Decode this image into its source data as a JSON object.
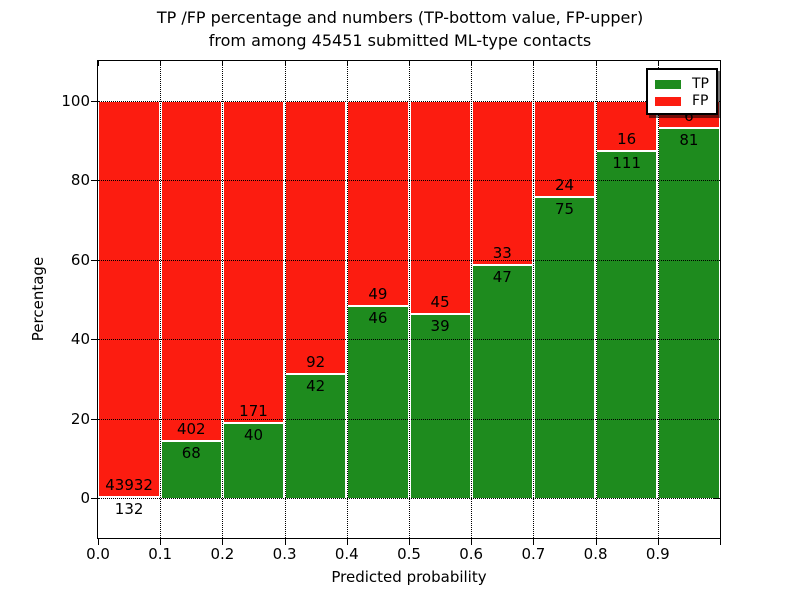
{
  "title": {
    "line1": "TP /FP percentage and numbers (TP-bottom value, FP-upper)",
    "line2": "from among 45451 submitted ML-type contacts"
  },
  "axes": {
    "xlabel": "Predicted probability",
    "ylabel": "Percentage",
    "xtick_labels": [
      "0.0",
      "0.1",
      "0.2",
      "0.3",
      "0.4",
      "0.5",
      "0.6",
      "0.7",
      "0.8",
      "0.9"
    ],
    "ytick_labels": [
      "0",
      "20",
      "40",
      "60",
      "80",
      "100"
    ],
    "ytick_values": [
      0,
      20,
      40,
      60,
      80,
      100
    ]
  },
  "legend": [
    {
      "label": "TP",
      "color": "#1e8b1e"
    },
    {
      "label": "FP",
      "color": "#fc1c10"
    }
  ],
  "colors": {
    "tp": "#1e8b1e",
    "fp": "#fc1c10",
    "grid": "#000000",
    "background": "#ffffff"
  },
  "chart_data": {
    "type": "bar",
    "stacked": true,
    "normalized": "percent",
    "title": "TP /FP percentage and numbers (TP-bottom value, FP-upper) from among 45451 submitted ML-type contacts",
    "total_contacts": 45451,
    "xlabel": "Predicted probability",
    "ylabel": "Percentage",
    "xlim": [
      0.0,
      1.0
    ],
    "ylim": [
      -10,
      110
    ],
    "grid": true,
    "legend_position": "upper right",
    "categories": [
      "0.0-0.1",
      "0.1-0.2",
      "0.2-0.3",
      "0.3-0.4",
      "0.4-0.5",
      "0.5-0.6",
      "0.6-0.7",
      "0.7-0.8",
      "0.8-0.9",
      "0.9-1.0"
    ],
    "series": [
      {
        "name": "TP",
        "values": [
          132,
          68,
          40,
          42,
          46,
          39,
          47,
          75,
          111,
          81
        ]
      },
      {
        "name": "FP",
        "values": [
          43932,
          402,
          171,
          92,
          49,
          45,
          33,
          24,
          16,
          6
        ]
      }
    ],
    "tp_percent": [
      0.3,
      14.47,
      18.96,
      31.34,
      48.42,
      46.43,
      58.75,
      75.76,
      87.4,
      93.1
    ]
  }
}
